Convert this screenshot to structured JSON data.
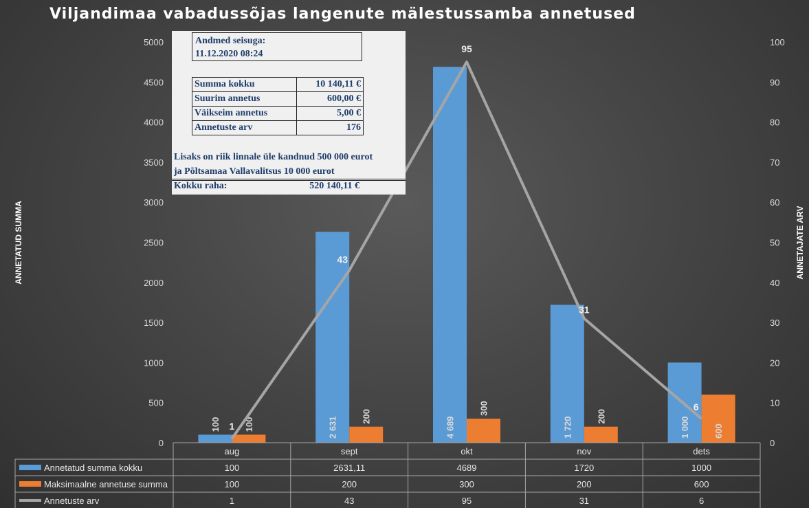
{
  "title": "Viljandimaa vabadussõjas langenute mälestussamba annetused",
  "info_box": {
    "as_of_label": "Andmed seisuga:",
    "as_of_value": "11.12.2020 08:24",
    "stats": [
      {
        "label": "Summa kokku",
        "value": "10 140,11 €"
      },
      {
        "label": "Suurim annetus",
        "value": "600,00 €"
      },
      {
        "label": "Väikseim annetus",
        "value": "5,00 €"
      },
      {
        "label": "Annetuste arv",
        "value": "176"
      }
    ],
    "note_line1": "Lisaks on riik linnale üle kandnud 500 000 eurot",
    "note_line2": "ja Põltsamaa Vallavalitsus 10 000 eurot",
    "total_label": "Kokku raha:",
    "total_value": "520 140,11 €"
  },
  "chart_data": {
    "type": "bar",
    "title": "Viljandimaa vabadussõjas langenute mälestussamba annetused",
    "categories": [
      "aug",
      "sept",
      "okt",
      "nov",
      "dets"
    ],
    "ylabel": "ANNETATUD SUMMA",
    "y2label": "ANNETAJATE ARV",
    "ylim": [
      0,
      5000
    ],
    "y2lim": [
      0,
      100
    ],
    "yticks": [
      0,
      500,
      1000,
      1500,
      2000,
      2500,
      3000,
      3500,
      4000,
      4500,
      5000
    ],
    "y2ticks": [
      0,
      10,
      20,
      30,
      40,
      50,
      60,
      70,
      80,
      90,
      100
    ],
    "grid": false,
    "legend": "data-table",
    "series": [
      {
        "name": "Annetatud summa kokku",
        "type": "bar",
        "axis": "left",
        "color": "#5b9bd5",
        "values": [
          100,
          2631.11,
          4689,
          1720,
          1000
        ],
        "table_values": [
          "100",
          "2631,11",
          "4689",
          "1720",
          "1000"
        ],
        "data_labels": [
          "100",
          "2 631",
          "4 689",
          "1 720",
          "1 000"
        ]
      },
      {
        "name": "Maksimaalne annetuse summa",
        "type": "bar",
        "axis": "left",
        "color": "#ed7d31",
        "values": [
          100,
          200,
          300,
          200,
          600
        ],
        "table_values": [
          "100",
          "200",
          "300",
          "200",
          "600"
        ],
        "data_labels": [
          "100",
          "200",
          "300",
          "200",
          "600"
        ]
      },
      {
        "name": "Annetuste arv",
        "type": "line",
        "axis": "right",
        "color": "#a5a5a5",
        "values": [
          1,
          43,
          95,
          31,
          6
        ],
        "table_values": [
          "1",
          "43",
          "95",
          "31",
          "6"
        ],
        "data_labels": [
          "1",
          "43",
          "95",
          "31",
          "6"
        ]
      }
    ]
  }
}
